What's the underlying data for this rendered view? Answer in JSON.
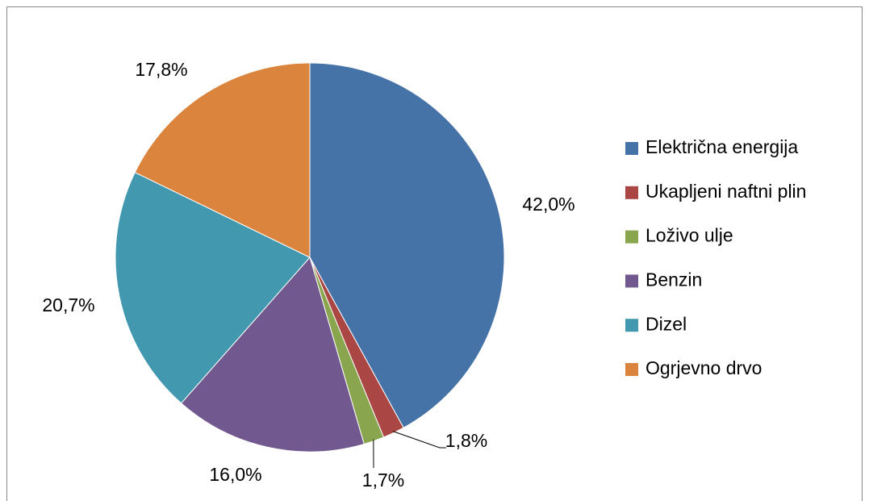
{
  "chart_data": {
    "type": "pie",
    "categories": [
      "Električna energija",
      "Ukapljeni naftni plin",
      "Loživo ulje",
      "Benzin",
      "Dizel",
      "Ogrjevno drvo"
    ],
    "values": [
      42.0,
      1.8,
      1.7,
      16.0,
      20.7,
      17.8
    ],
    "value_labels": [
      "42,0%",
      "1,8%",
      "1,7%",
      "16,0%",
      "20,7%",
      "17,8%"
    ],
    "colors": [
      "#4572a7",
      "#aa4643",
      "#89a54e",
      "#71588f",
      "#4198af",
      "#db843d"
    ],
    "legend": "right"
  }
}
